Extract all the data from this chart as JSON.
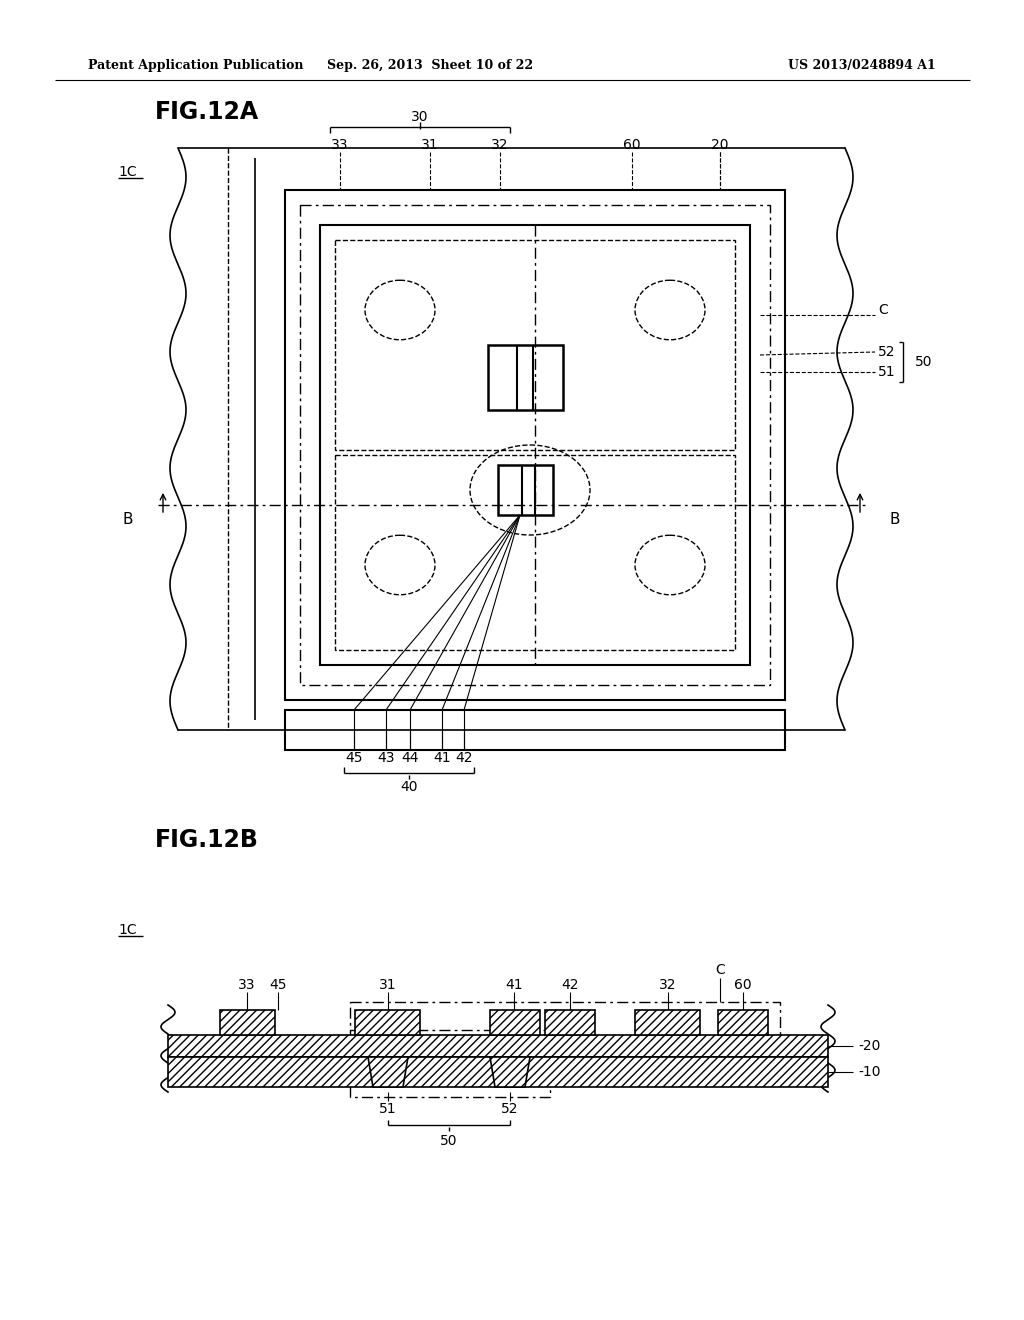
{
  "bg_color": "#ffffff",
  "header_left": "Patent Application Publication",
  "header_mid": "Sep. 26, 2013  Sheet 10 of 22",
  "header_right": "US 2013/0248894 A1"
}
